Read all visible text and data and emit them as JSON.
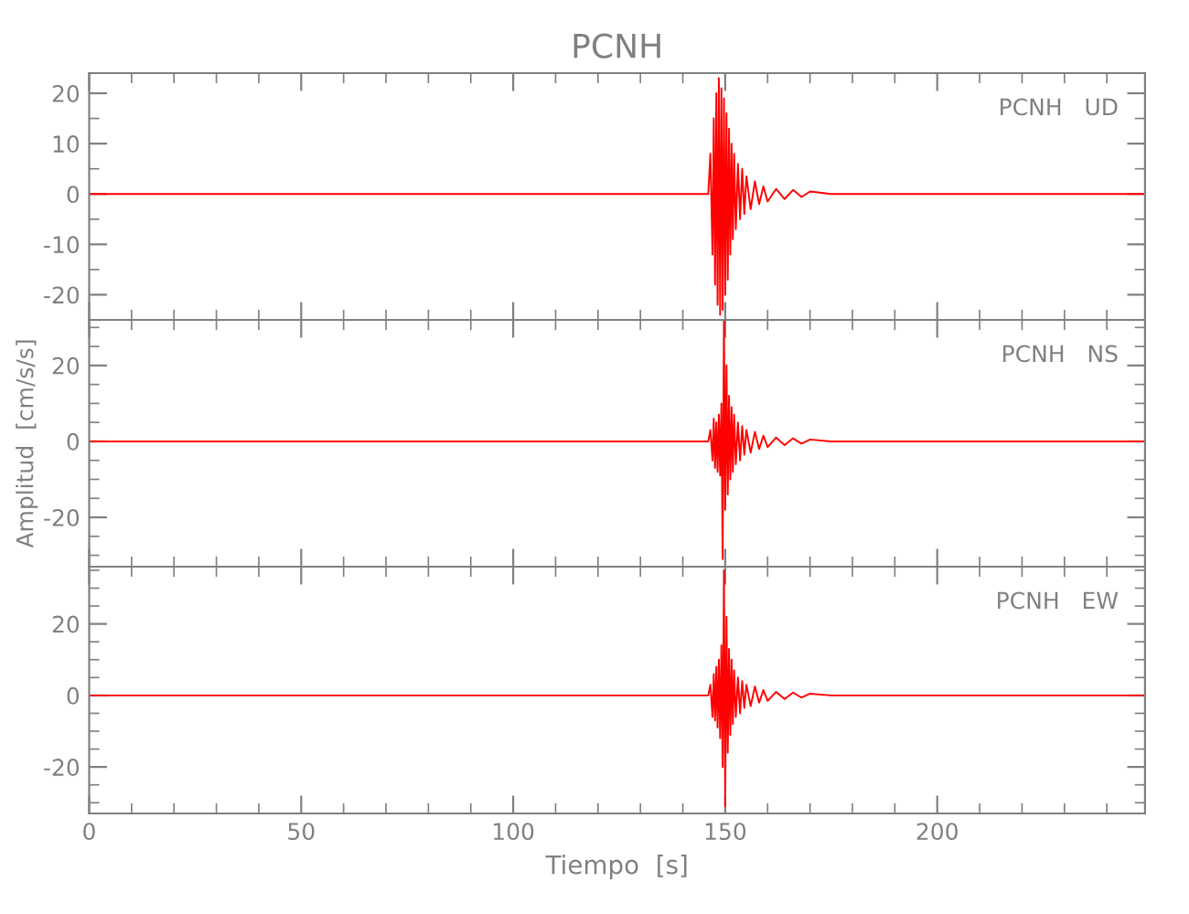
{
  "chart_data": [
    {
      "type": "line",
      "title": "PCNH",
      "annotations": [
        "PCNH   UD"
      ],
      "xlim": [
        0,
        249
      ],
      "xticks": [
        0,
        50,
        100,
        150,
        200
      ],
      "ylim": [
        -25,
        24
      ],
      "yticks": [
        -20,
        -10,
        0,
        10,
        20
      ],
      "tick_labels": "y",
      "grid": false,
      "series": [
        {
          "color": "#ff0000",
          "x": [
            0,
            50,
            100,
            146,
            146.5,
            147,
            147.3,
            147.6,
            147.9,
            148.2,
            148.5,
            148.8,
            149.1,
            149.4,
            149.7,
            150,
            150.3,
            150.6,
            150.9,
            151.2,
            151.5,
            151.8,
            152.1,
            152.5,
            153,
            153.5,
            154,
            154.5,
            155,
            156,
            157,
            158,
            159,
            160,
            162,
            164,
            166,
            168,
            170,
            175,
            200,
            249
          ],
          "values": [
            0,
            0,
            0,
            0,
            8,
            -12,
            15,
            -18,
            20,
            -22,
            23,
            -24,
            21,
            -23,
            19,
            -20,
            16,
            -17,
            13,
            -12,
            10,
            -9,
            8,
            -7,
            6,
            -5,
            5,
            -4,
            3.5,
            -3,
            2.5,
            -2,
            1.5,
            -1.5,
            1,
            -1,
            0.8,
            -0.6,
            0.5,
            0,
            0,
            0
          ]
        }
      ]
    },
    {
      "type": "line",
      "ylabel": "Amplitud  [cm/s/s]",
      "annotations": [
        "PCNH   NS"
      ],
      "xlim": [
        0,
        249
      ],
      "xticks": [
        0,
        50,
        100,
        150,
        200
      ],
      "ylim": [
        -33,
        32
      ],
      "yticks": [
        -20,
        0,
        20
      ],
      "tick_labels": "y",
      "grid": false,
      "series": [
        {
          "color": "#ff0000",
          "x": [
            0,
            50,
            100,
            146,
            146.5,
            147,
            147.3,
            147.6,
            147.9,
            148.2,
            148.5,
            148.8,
            149.1,
            149.4,
            149.7,
            150,
            150.3,
            150.6,
            150.9,
            151.2,
            151.5,
            151.8,
            152.1,
            152.5,
            153,
            153.5,
            154,
            154.5,
            155,
            156,
            157,
            158,
            159,
            160,
            162,
            164,
            166,
            168,
            170,
            175,
            200,
            249
          ],
          "values": [
            0,
            0,
            0,
            0,
            3,
            -5,
            6,
            -7,
            5,
            -8,
            7,
            -9,
            10,
            -31,
            32,
            -18,
            20,
            -14,
            12,
            -10,
            9,
            -8,
            7,
            -6,
            5,
            -5,
            4,
            -3.5,
            3,
            -3,
            2.5,
            -2,
            1.5,
            -1.5,
            1,
            -1,
            0.8,
            -0.6,
            0.5,
            0,
            0,
            0
          ]
        }
      ]
    },
    {
      "type": "line",
      "xlabel": "Tiempo  [s]",
      "annotations": [
        "PCNH   EW"
      ],
      "xlim": [
        0,
        249
      ],
      "xticks": [
        0,
        50,
        100,
        150,
        200
      ],
      "ylim": [
        -33,
        36
      ],
      "yticks": [
        -20,
        0,
        20
      ],
      "grid": false,
      "series": [
        {
          "color": "#ff0000",
          "x": [
            0,
            50,
            100,
            146,
            146.5,
            147,
            147.3,
            147.6,
            147.9,
            148.2,
            148.5,
            148.8,
            149.1,
            149.4,
            149.7,
            150,
            150.3,
            150.6,
            150.9,
            151.2,
            151.5,
            151.8,
            152.1,
            152.5,
            153,
            153.5,
            154,
            154.5,
            155,
            156,
            157,
            158,
            159,
            160,
            162,
            164,
            166,
            168,
            170,
            175,
            200,
            249
          ],
          "values": [
            0,
            0,
            0,
            0,
            3,
            -6,
            6,
            -7,
            8,
            -9,
            10,
            -12,
            14,
            -20,
            35,
            -31,
            22,
            -16,
            13,
            -11,
            10,
            -8,
            7,
            -6,
            5,
            -5,
            4,
            -3.5,
            3,
            -3,
            2.5,
            -2,
            1.5,
            -1.5,
            1,
            -1,
            0.8,
            -0.6,
            0.5,
            0,
            0,
            0
          ]
        }
      ]
    }
  ]
}
